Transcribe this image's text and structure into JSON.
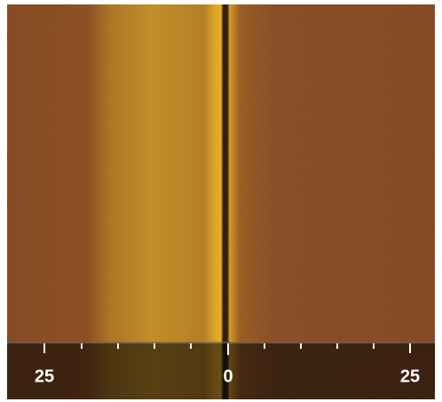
{
  "scale": {
    "labels": [
      "25",
      "0",
      "25"
    ]
  }
}
